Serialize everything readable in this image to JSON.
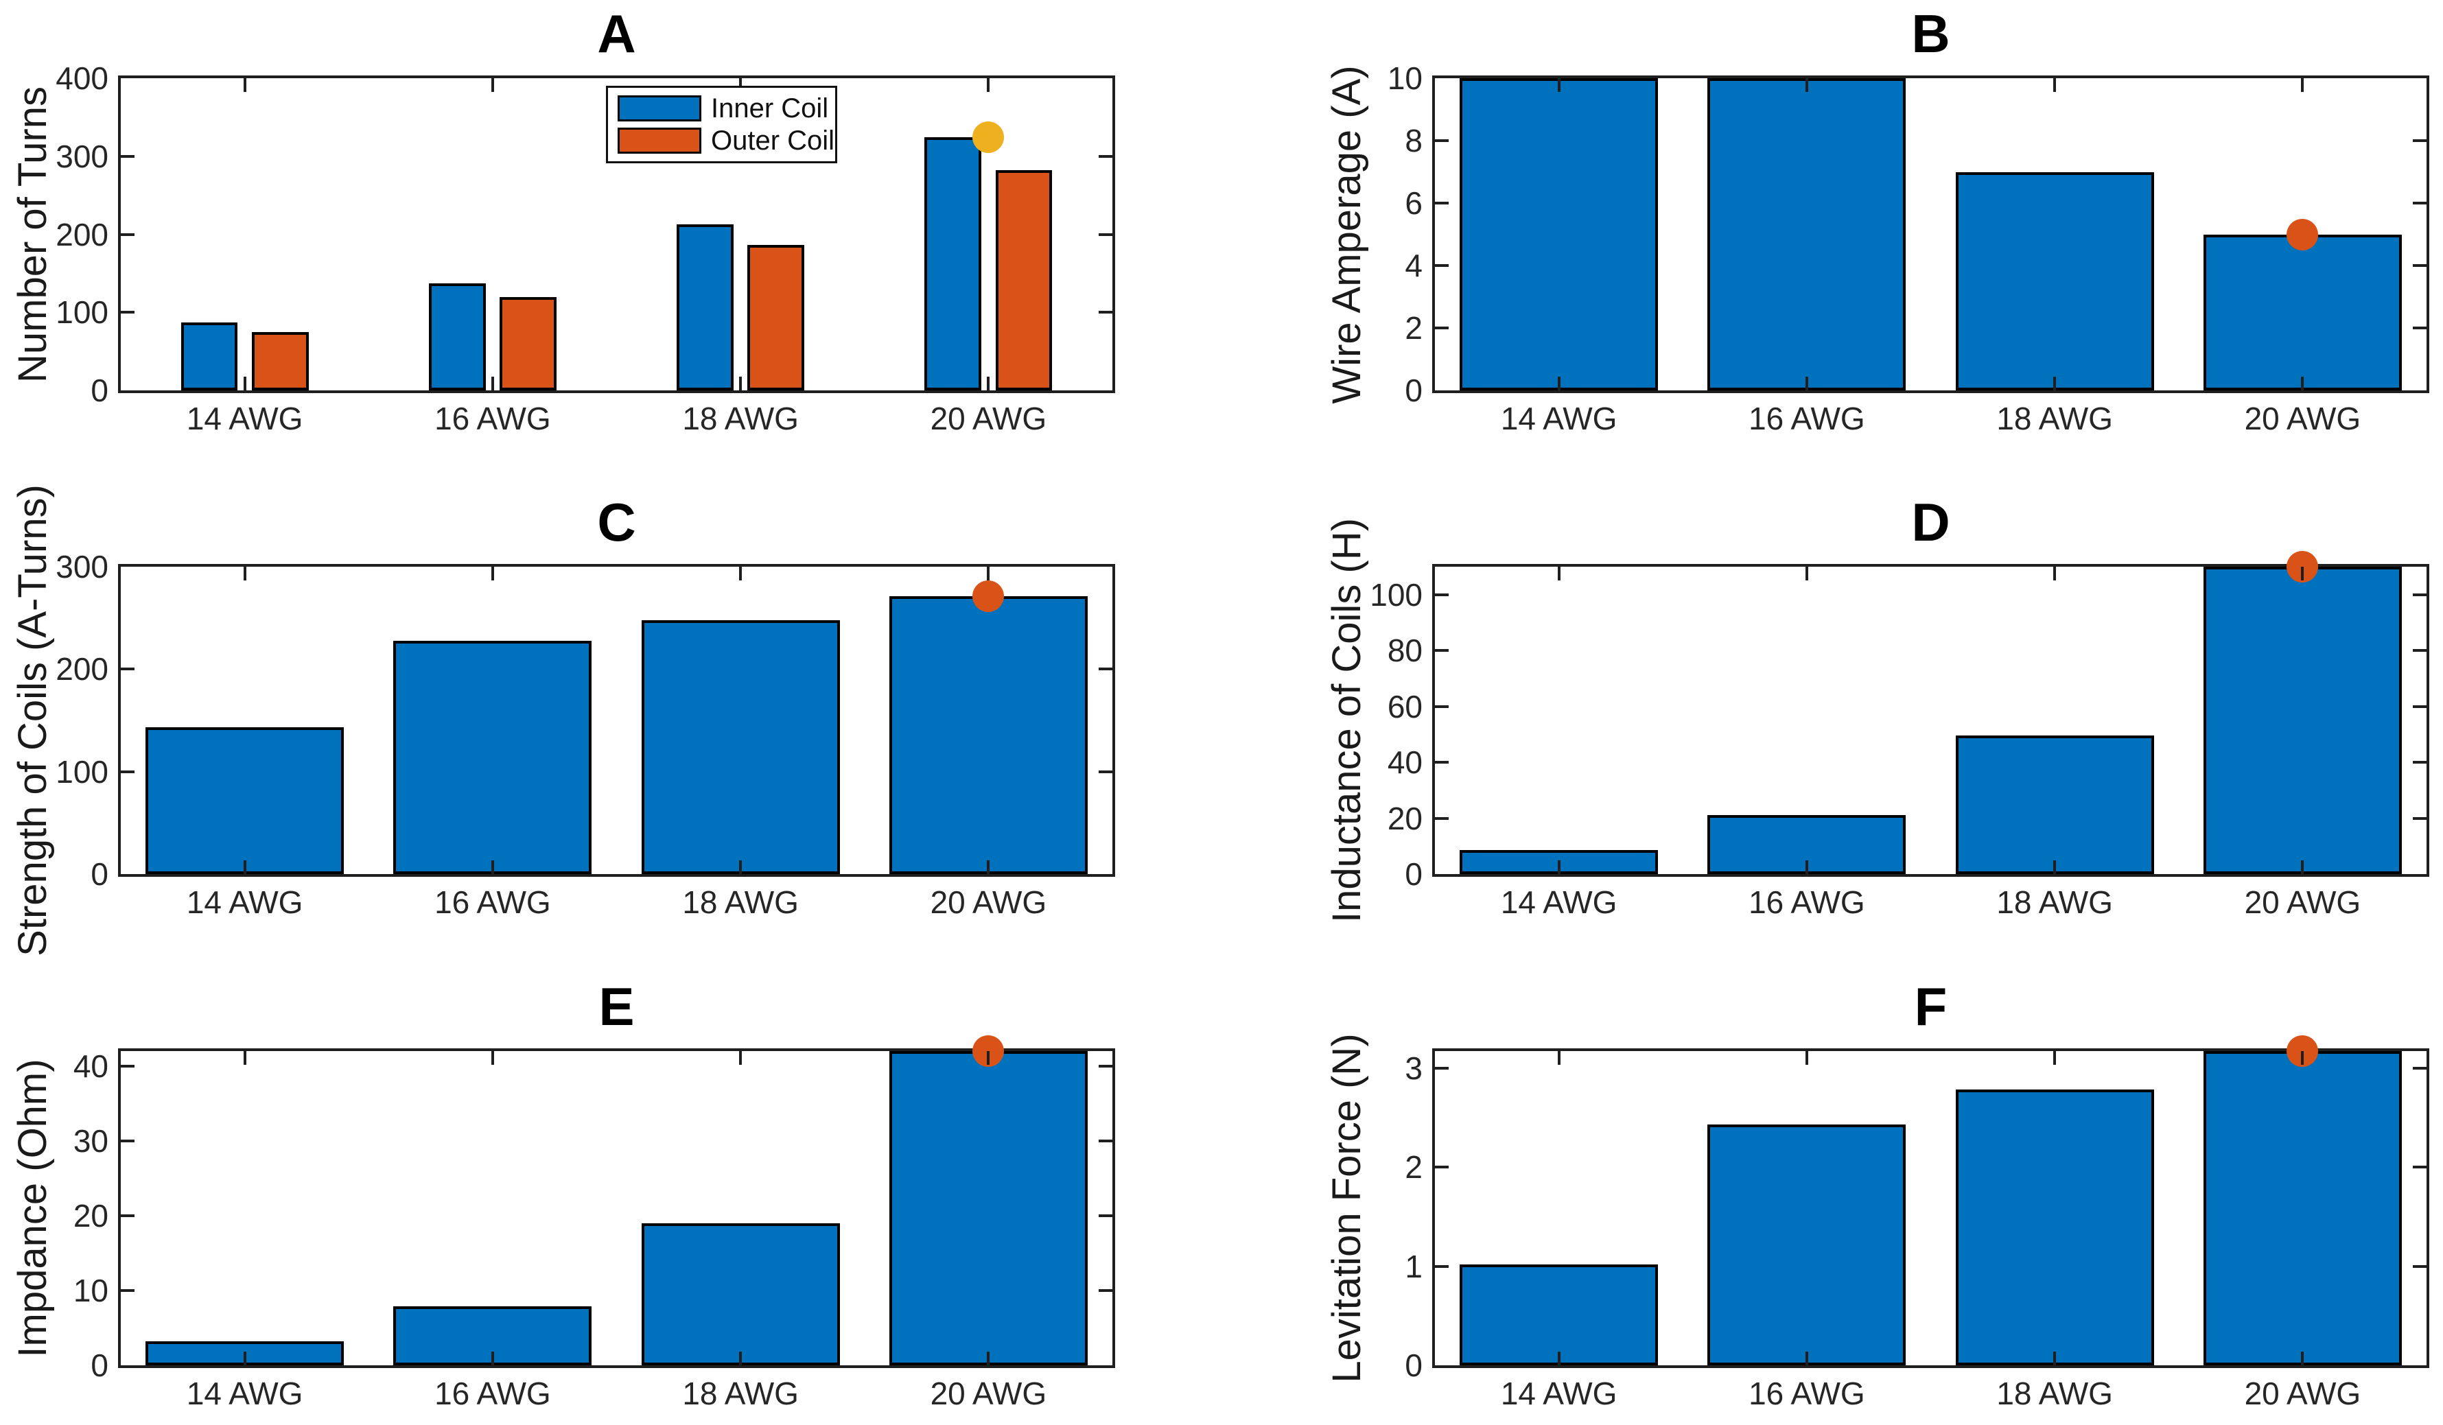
{
  "figure": {
    "background": "#ffffff",
    "palette": {
      "blue": "#0072BD",
      "orange": "#D95319",
      "yellow": "#EDB120"
    }
  },
  "chart_data": [
    {
      "id": "A",
      "type": "bar",
      "title": "A",
      "ylabel": "Number of Turns",
      "categories": [
        "14 AWG",
        "16 AWG",
        "18 AWG",
        "20 AWG"
      ],
      "series": [
        {
          "name": "Inner Coil",
          "color": "#0072BD",
          "values": [
            87,
            137,
            213,
            324
          ]
        },
        {
          "name": "Outer Coil",
          "color": "#D95319",
          "values": [
            75,
            120,
            186,
            282
          ]
        }
      ],
      "yticks": [
        0,
        100,
        200,
        300,
        400
      ],
      "ylim": [
        0,
        400
      ],
      "grid": false,
      "legend": {
        "position": "upper-center",
        "entries": [
          "Inner Coil",
          "Outer Coil"
        ]
      },
      "marker": {
        "category": "20 AWG",
        "value": 324,
        "color": "#EDB120"
      }
    },
    {
      "id": "B",
      "type": "bar",
      "title": "B",
      "ylabel": "Wire Amperage (A)",
      "categories": [
        "14 AWG",
        "16 AWG",
        "18 AWG",
        "20 AWG"
      ],
      "series": [
        {
          "name": "Wire Amperage",
          "color": "#0072BD",
          "values": [
            10,
            10,
            7,
            5
          ]
        }
      ],
      "yticks": [
        0,
        2,
        4,
        6,
        8,
        10
      ],
      "ylim": [
        0,
        10
      ],
      "grid": false,
      "marker": {
        "category": "20 AWG",
        "value": 5,
        "color": "#D95319"
      }
    },
    {
      "id": "C",
      "type": "bar",
      "title": "C",
      "ylabel": "Strength of Coils (A-Turns)",
      "categories": [
        "14 AWG",
        "16 AWG",
        "18 AWG",
        "20 AWG"
      ],
      "series": [
        {
          "name": "Strength of Coils",
          "color": "#0072BD",
          "values": [
            143,
            228,
            248,
            271
          ]
        }
      ],
      "yticks": [
        0,
        100,
        200,
        300
      ],
      "ylim": [
        0,
        300
      ],
      "grid": false,
      "marker": {
        "category": "20 AWG",
        "value": 271,
        "color": "#D95319"
      }
    },
    {
      "id": "D",
      "type": "bar",
      "title": "D",
      "ylabel": "Inductance of Coils (H)",
      "categories": [
        "14 AWG",
        "16 AWG",
        "18 AWG",
        "20 AWG"
      ],
      "series": [
        {
          "name": "Inductance of Coils",
          "color": "#0072BD",
          "values": [
            8.5,
            21,
            49.5,
            110
          ]
        }
      ],
      "yticks": [
        0,
        20,
        40,
        60,
        80,
        100
      ],
      "ylim": [
        0,
        110
      ],
      "grid": false,
      "marker": {
        "category": "20 AWG",
        "value": 110,
        "color": "#D95319"
      }
    },
    {
      "id": "E",
      "type": "bar",
      "title": "E",
      "ylabel": "Impdance (Ohm)",
      "categories": [
        "14 AWG",
        "16 AWG",
        "18 AWG",
        "20 AWG"
      ],
      "series": [
        {
          "name": "Impedance",
          "color": "#0072BD",
          "values": [
            3.2,
            7.9,
            19,
            42
          ]
        }
      ],
      "yticks": [
        0,
        10,
        20,
        30,
        40
      ],
      "ylim": [
        0,
        42
      ],
      "grid": false,
      "marker": {
        "category": "20 AWG",
        "value": 42,
        "color": "#D95319"
      }
    },
    {
      "id": "F",
      "type": "bar",
      "title": "F",
      "ylabel": "Levitation Force (N)",
      "categories": [
        "14 AWG",
        "16 AWG",
        "18 AWG",
        "20 AWG"
      ],
      "series": [
        {
          "name": "Levitation Force",
          "color": "#0072BD",
          "values": [
            1.02,
            2.43,
            2.78,
            3.17
          ]
        }
      ],
      "yticks": [
        0,
        1,
        2,
        3
      ],
      "ylim": [
        0,
        3.17
      ],
      "grid": false,
      "marker": {
        "category": "20 AWG",
        "value": 3.17,
        "color": "#D95319"
      }
    }
  ]
}
